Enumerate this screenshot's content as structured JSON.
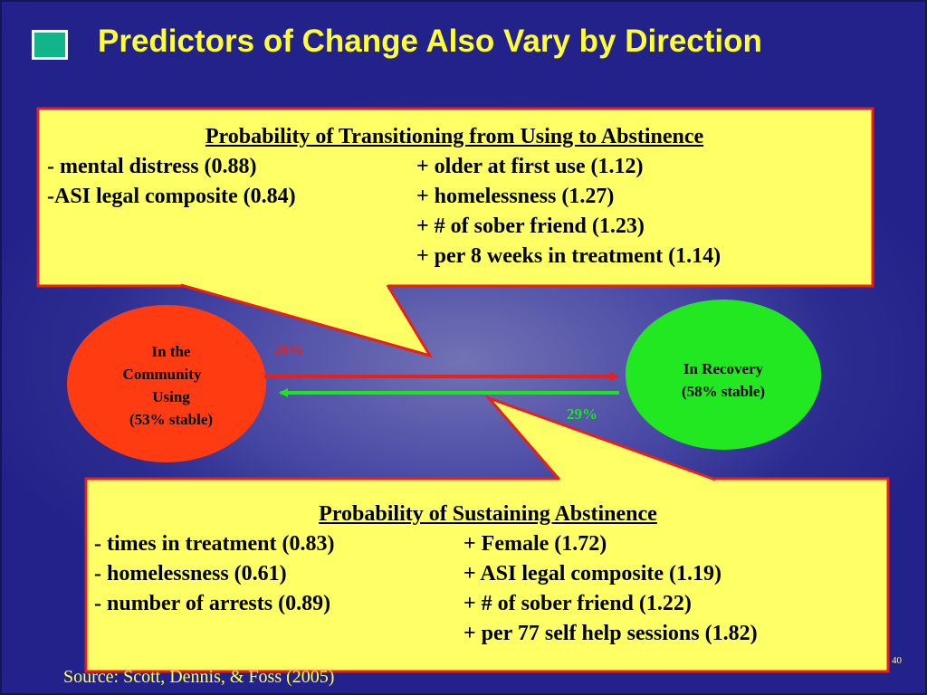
{
  "title": "Predictors of Change Also Vary by Direction",
  "colors": {
    "title": "#ffff33",
    "callout_fill": "#ffff66",
    "callout_border": "#e8201b",
    "using_node": "#ff3b12",
    "recovery_node": "#22e822",
    "arrow_red": "#e8201b",
    "arrow_green": "#18e818"
  },
  "transition_box": {
    "heading": "Probability of Transitioning from Using to Abstinence",
    "rows": [
      {
        "left": "- mental distress (0.88)",
        "right": "+ older at first use (1.12)"
      },
      {
        "left": "-ASI legal composite (0.84)",
        "right": "+ homelessness (1.27)"
      },
      {
        "left": "",
        "right": "+ # of sober friend (1.23)"
      },
      {
        "left": "",
        "right": "+ per 8 weeks in treatment (1.14)"
      }
    ]
  },
  "using_node": {
    "lines": [
      "In the",
      "Community",
      "Using",
      "(53% stable)"
    ]
  },
  "recovery_node": {
    "lines": [
      "In Recovery",
      "(58% stable)"
    ]
  },
  "arrows": {
    "to_recovery_pct": "28%",
    "to_using_pct": "29%"
  },
  "sustain_box": {
    "heading": "Probability of Sustaining Abstinence",
    "rows": [
      {
        "left": "- times in treatment (0.83)",
        "right": "+ Female (1.72)"
      },
      {
        "left": "- homelessness (0.61)",
        "right": "+ ASI legal composite (1.19)"
      },
      {
        "left": "- number of arrests (0.89)",
        "right": "+ # of sober friend (1.22)"
      },
      {
        "left": "",
        "right": "+ per 77 self help sessions (1.82)"
      }
    ]
  },
  "source": "Source: Scott, Dennis, & Foss (2005)",
  "slide_number": "40"
}
